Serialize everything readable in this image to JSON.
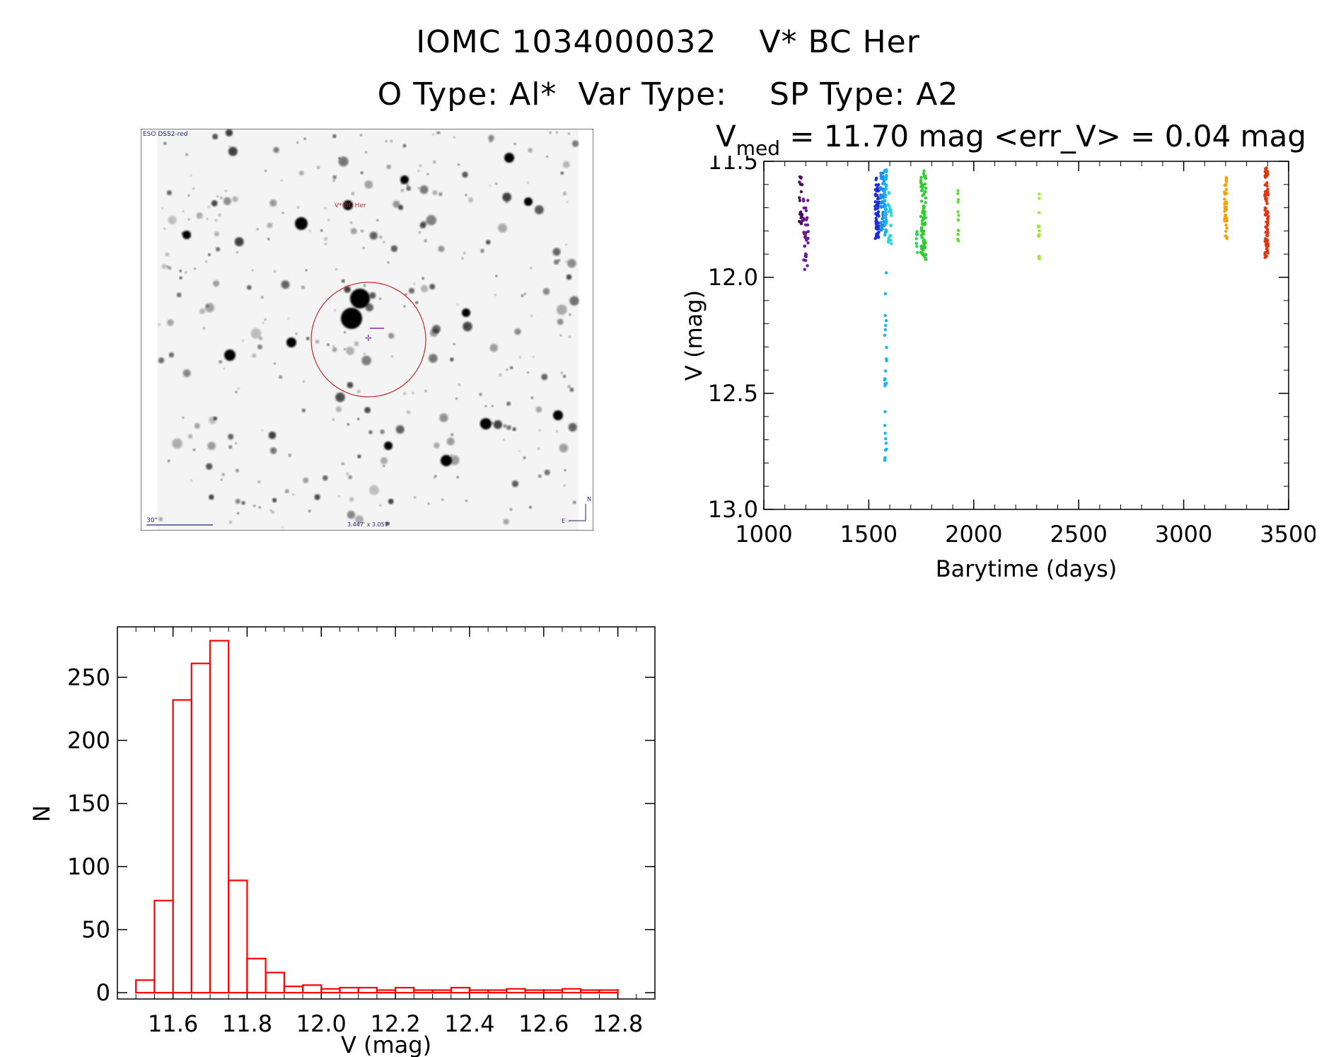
{
  "header": {
    "title_line1": "IOMC 1034000032    V* BC Her",
    "title_line2": "O Type: Al*  Var Type:    SP Type: A2",
    "stats_v": "V",
    "stats_sub": "med",
    "stats_rest": " = 11.70 mag <err_V> = 0.04 mag"
  },
  "sky_image": {
    "survey_label": "ESO DSS2-red",
    "target_label": "V* BC Her",
    "scale_label": "30\"",
    "fov_label": "3.447' x 3.057'",
    "north_label": "N",
    "east_label": "E"
  },
  "chart_data": [
    {
      "type": "scatter",
      "name": "light-curve",
      "xlabel": "Barytime (days)",
      "ylabel": "V (mag)",
      "xlim": [
        1000,
        3500
      ],
      "ylim": [
        13.0,
        11.5
      ],
      "x_ticks": [
        1000,
        1500,
        2000,
        2500,
        3000,
        3500
      ],
      "x_tick_labels": [
        "1000",
        "1500",
        "2000",
        "2500",
        "3000",
        "3500"
      ],
      "y_ticks": [
        11.5,
        12.0,
        12.5,
        13.0
      ],
      "y_tick_labels": [
        "11.5",
        "12.0",
        "12.5",
        "13.0"
      ],
      "clusters": [
        {
          "x": 1175,
          "x_spread": 8,
          "ymin": 11.56,
          "ymax": 11.78,
          "n": 22,
          "color": "#4b0a5e"
        },
        {
          "x": 1200,
          "x_spread": 12,
          "ymin": 11.65,
          "ymax": 11.98,
          "n": 34,
          "color": "#6a1b9a"
        },
        {
          "x": 1540,
          "x_spread": 10,
          "ymin": 11.57,
          "ymax": 11.84,
          "n": 60,
          "color": "#1a2fd6"
        },
        {
          "x": 1565,
          "x_spread": 10,
          "ymin": 11.55,
          "ymax": 11.8,
          "n": 50,
          "color": "#1a8ee6"
        },
        {
          "x": 1580,
          "x_spread": 5,
          "ymin": 11.52,
          "ymax": 12.81,
          "n": 70,
          "color": "#1ab2f0"
        },
        {
          "x": 1600,
          "x_spread": 8,
          "ymin": 11.6,
          "ymax": 11.86,
          "n": 20,
          "color": "#26d4e0"
        },
        {
          "x": 1730,
          "x_spread": 4,
          "ymin": 11.78,
          "ymax": 11.9,
          "n": 10,
          "color": "#2fd35b"
        },
        {
          "x": 1760,
          "x_spread": 12,
          "ymin": 11.54,
          "ymax": 11.93,
          "n": 80,
          "color": "#2ecc2e"
        },
        {
          "x": 1925,
          "x_spread": 3,
          "ymin": 11.62,
          "ymax": 11.86,
          "n": 14,
          "color": "#66dd33"
        },
        {
          "x": 2310,
          "x_spread": 3,
          "ymin": 11.63,
          "ymax": 11.93,
          "n": 14,
          "color": "#a2e830"
        },
        {
          "x": 3200,
          "x_spread": 6,
          "ymin": 11.57,
          "ymax": 11.84,
          "n": 40,
          "color": "#f5a10e"
        },
        {
          "x": 3395,
          "x_spread": 8,
          "ymin": 11.52,
          "ymax": 11.92,
          "n": 80,
          "color": "#e8330c"
        }
      ]
    },
    {
      "type": "bar",
      "name": "histogram",
      "xlabel": "V (mag)",
      "ylabel": "N",
      "xlim": [
        11.45,
        12.9
      ],
      "ylim": [
        -5,
        290
      ],
      "x_ticks": [
        11.6,
        11.8,
        12.0,
        12.2,
        12.4,
        12.6,
        12.8
      ],
      "x_tick_labels": [
        "11.6",
        "11.8",
        "12.0",
        "12.2",
        "12.4",
        "12.6",
        "12.8"
      ],
      "y_ticks": [
        0,
        50,
        100,
        150,
        200,
        250
      ],
      "y_tick_labels": [
        "0",
        "50",
        "100",
        "150",
        "200",
        "250"
      ],
      "bin_start": 11.5,
      "bin_width": 0.05,
      "values": [
        10,
        73,
        232,
        261,
        279,
        89,
        27,
        16,
        5,
        6,
        3,
        4,
        4,
        2,
        4,
        2,
        2,
        4,
        2,
        2,
        3,
        2,
        2,
        3,
        2,
        2
      ]
    }
  ]
}
